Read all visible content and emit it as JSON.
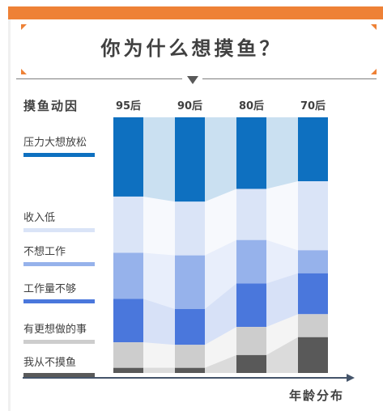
{
  "title": "你为什么想摸鱼？",
  "chart_data": {
    "type": "bar",
    "stacked": true,
    "normalized": true,
    "legend_title": "摸鱼动因",
    "xlabel": "年龄分布",
    "categories": [
      "95后",
      "90后",
      "80后",
      "70后"
    ],
    "series": [
      {
        "name": "压力大想放松",
        "color": "#0e70c0",
        "values": [
          31,
          33,
          28,
          25
        ]
      },
      {
        "name": "收入低",
        "color": "#dae4f7",
        "values": [
          22,
          21,
          20,
          27
        ]
      },
      {
        "name": "不想工作",
        "color": "#96b2eb",
        "values": [
          18,
          21,
          17,
          9
        ]
      },
      {
        "name": "工作量不够",
        "color": "#4a77dc",
        "values": [
          17,
          14,
          17,
          16
        ]
      },
      {
        "name": "有更想做的事",
        "color": "#cdcdcd",
        "values": [
          10,
          9,
          11,
          9
        ]
      },
      {
        "name": "我从不摸鱼",
        "color": "#595959",
        "values": [
          2,
          2,
          7,
          14
        ]
      }
    ]
  }
}
